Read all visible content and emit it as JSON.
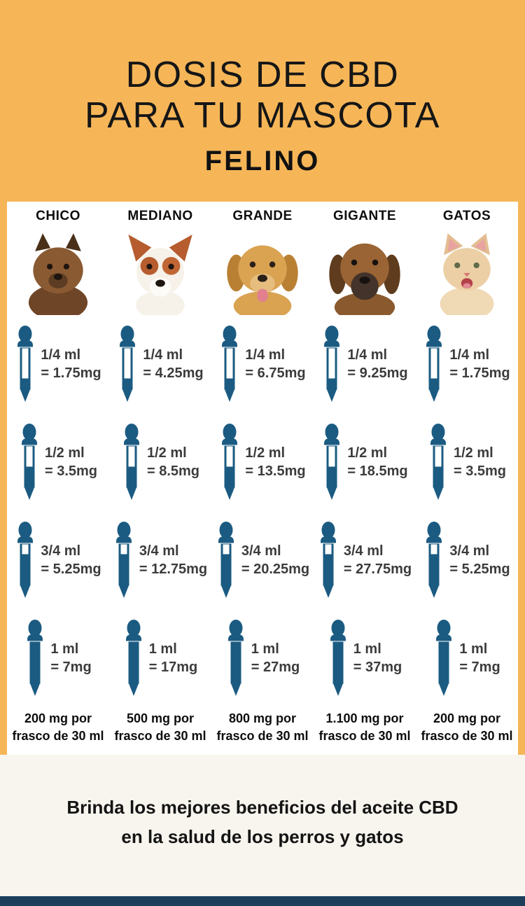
{
  "header": {
    "title_line1": "DOSIS DE CBD",
    "title_line2": "PARA TU MASCOTA",
    "subtitle": "FELINO"
  },
  "dose_chart": {
    "columns": [
      {
        "label": "CHICO",
        "pet": "pomeranian",
        "doses": [
          {
            "ml": "1/4 ml",
            "mg": "= 1.75mg",
            "fill": 0.25
          },
          {
            "ml": "1/2 ml",
            "mg": "= 3.5mg",
            "fill": 0.5
          },
          {
            "ml": "3/4 ml",
            "mg": "= 5.25mg",
            "fill": 0.75
          },
          {
            "ml": "1 ml",
            "mg": "= 7mg",
            "fill": 1
          }
        ],
        "bottle_line1": "200 mg por",
        "bottle_line2": "frasco de 30 ml"
      },
      {
        "label": "MEDIANO",
        "pet": "jack-russell",
        "doses": [
          {
            "ml": "1/4 ml",
            "mg": "= 4.25mg",
            "fill": 0.25
          },
          {
            "ml": "1/2 ml",
            "mg": "= 8.5mg",
            "fill": 0.5
          },
          {
            "ml": "3/4 ml",
            "mg": "= 12.75mg",
            "fill": 0.75
          },
          {
            "ml": "1 ml",
            "mg": "= 17mg",
            "fill": 1
          }
        ],
        "bottle_line1": "500 mg por",
        "bottle_line2": "frasco de 30 ml"
      },
      {
        "label": "GRANDE",
        "pet": "golden-retriever",
        "doses": [
          {
            "ml": "1/4 ml",
            "mg": "= 6.75mg",
            "fill": 0.25
          },
          {
            "ml": "1/2 ml",
            "mg": "= 13.5mg",
            "fill": 0.5
          },
          {
            "ml": "3/4 ml",
            "mg": "= 20.25mg",
            "fill": 0.75
          },
          {
            "ml": "1 ml",
            "mg": "= 27mg",
            "fill": 1
          }
        ],
        "bottle_line1": "800 mg por",
        "bottle_line2": "frasco de 30 ml"
      },
      {
        "label": "GIGANTE",
        "pet": "mastiff",
        "doses": [
          {
            "ml": "1/4 ml",
            "mg": "= 9.25mg",
            "fill": 0.25
          },
          {
            "ml": "1/2 ml",
            "mg": "= 18.5mg",
            "fill": 0.5
          },
          {
            "ml": "3/4 ml",
            "mg": "= 27.75mg",
            "fill": 0.75
          },
          {
            "ml": "1 ml",
            "mg": "= 37mg",
            "fill": 1
          }
        ],
        "bottle_line1": "1.100 mg por",
        "bottle_line2": "frasco de 30 ml"
      },
      {
        "label": "GATOS",
        "pet": "cat",
        "doses": [
          {
            "ml": "1/4 ml",
            "mg": "= 1.75mg",
            "fill": 0.25
          },
          {
            "ml": "1/2 ml",
            "mg": "= 3.5mg",
            "fill": 0.5
          },
          {
            "ml": "3/4 ml",
            "mg": "= 5.25mg",
            "fill": 0.75
          },
          {
            "ml": "1 ml",
            "mg": "= 7mg",
            "fill": 1
          }
        ],
        "bottle_line1": "200 mg por",
        "bottle_line2": "frasco de 30 ml"
      }
    ]
  },
  "footer": {
    "tagline_line1": "Brinda los mejores beneficios del aceite CBD",
    "tagline_line2": "en la salud de los perros y gatos"
  },
  "chart_data": {
    "type": "table",
    "title": "DOSIS DE CBD PARA TU MASCOTA - FELINO",
    "columns": [
      "CHICO",
      "MEDIANO",
      "GRANDE",
      "GIGANTE",
      "GATOS"
    ],
    "rows": [
      {
        "dose_ml": "1/4 ml",
        "mg": [
          1.75,
          4.25,
          6.75,
          9.25,
          1.75
        ]
      },
      {
        "dose_ml": "1/2 ml",
        "mg": [
          3.5,
          8.5,
          13.5,
          18.5,
          3.5
        ]
      },
      {
        "dose_ml": "3/4 ml",
        "mg": [
          5.25,
          12.75,
          20.25,
          27.75,
          5.25
        ]
      },
      {
        "dose_ml": "1 ml",
        "mg": [
          7,
          17,
          27,
          37,
          7
        ]
      }
    ],
    "bottle_mg_per_frasco_30ml": [
      "200",
      "500",
      "800",
      "1.100",
      "200"
    ]
  },
  "colors": {
    "accent_orange": "#F6B658",
    "dropper_blue": "#1B5B82",
    "panel_white": "#FFFFFF",
    "cream": "#F8F5EE",
    "footer_bar_navy": "#1C3E5B"
  }
}
